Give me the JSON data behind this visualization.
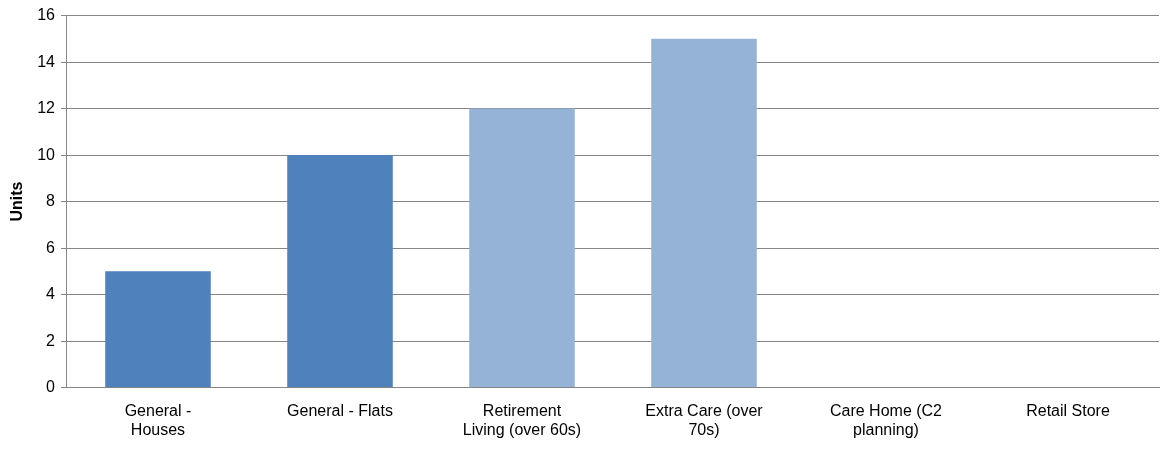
{
  "chart_data": {
    "type": "bar",
    "ylabel": "Units",
    "categories": [
      "General -\nHouses",
      "General - Flats",
      "Retirement\nLiving (over 60s)",
      "Extra Care (over\n70s)",
      "Care Home (C2\nplanning)",
      "Retail Store"
    ],
    "values": [
      5,
      10,
      12,
      15,
      0,
      0
    ],
    "colors": [
      "#4f81bd",
      "#4f81bd",
      "#95b3d7",
      "#95b3d7",
      "#95b3d7",
      "#95b3d7"
    ],
    "ylim": [
      0,
      16
    ],
    "yticks": [
      0,
      2,
      4,
      6,
      8,
      10,
      12,
      14,
      16
    ],
    "grid": "y"
  }
}
